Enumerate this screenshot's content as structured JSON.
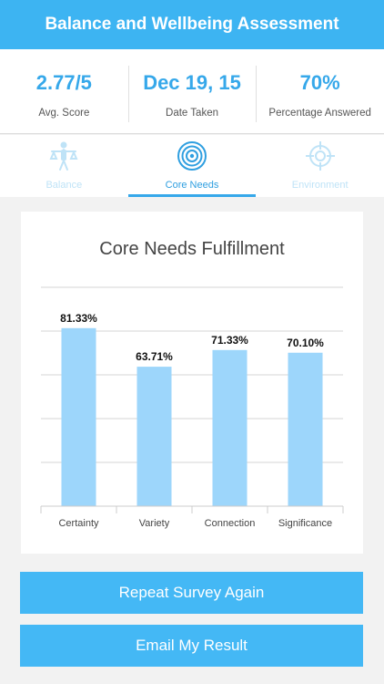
{
  "header": {
    "title": "Balance and Wellbeing Assessment"
  },
  "stats": [
    {
      "value": "2.77/5",
      "label": "Avg. Score"
    },
    {
      "value": "Dec 19, 15",
      "label": "Date Taken"
    },
    {
      "value": "70%",
      "label": "Percentage Answered"
    }
  ],
  "tabs": [
    {
      "label": "Balance",
      "icon": "balance-person-icon",
      "active": false
    },
    {
      "label": "Core Needs",
      "icon": "target-icon",
      "active": true
    },
    {
      "label": "Environment",
      "icon": "crosshair-icon",
      "active": false
    }
  ],
  "colors": {
    "accent": "#3db4f2",
    "bar": "#9dd6fb",
    "tab_inactive": "#bfe3f7",
    "button": "#44b8f5"
  },
  "chart_data": {
    "type": "bar",
    "title": "Core Needs Fulfillment",
    "categories": [
      "Certainty",
      "Variety",
      "Connection",
      "Significance"
    ],
    "values": [
      81.33,
      63.71,
      71.33,
      70.1
    ],
    "value_labels": [
      "81.33%",
      "63.71%",
      "71.33%",
      "70.10%"
    ],
    "xlabel": "",
    "ylabel": "",
    "ylim": [
      0,
      100
    ],
    "grid": true,
    "legend": false
  },
  "buttons": {
    "repeat": "Repeat Survey Again",
    "email": "Email My Result"
  }
}
